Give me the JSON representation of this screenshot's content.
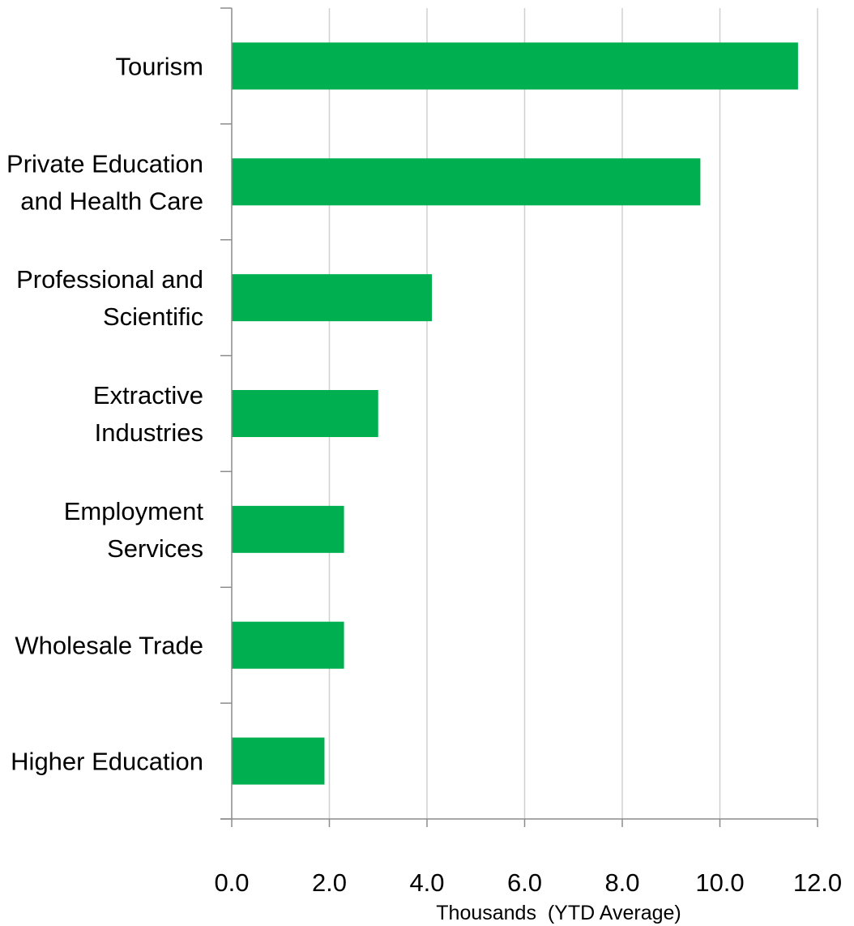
{
  "colors": {
    "bar": "#00b050",
    "gridline": "#d0d0d0",
    "axis": "#8c8c8c",
    "text": "#000000"
  },
  "chart_data": {
    "type": "bar",
    "orientation": "horizontal",
    "categories": [
      [
        "Tourism"
      ],
      [
        "Private Education",
        "and Health Care"
      ],
      [
        "Professional and",
        "Scientific"
      ],
      [
        "Extractive",
        "Industries"
      ],
      [
        "Employment",
        "Services"
      ],
      [
        "Wholesale Trade"
      ],
      [
        "Higher Education"
      ]
    ],
    "values": [
      11.6,
      9.6,
      4.1,
      3.0,
      2.3,
      2.3,
      1.9
    ],
    "title": "",
    "xlabel": "Thousands  (YTD Average)",
    "ylabel": "",
    "xlim": [
      0,
      12
    ],
    "xticks": [
      "0.0",
      "2.0",
      "4.0",
      "6.0",
      "8.0",
      "10.0",
      "12.0"
    ],
    "grid": "vertical gridlines",
    "legend": "none"
  }
}
